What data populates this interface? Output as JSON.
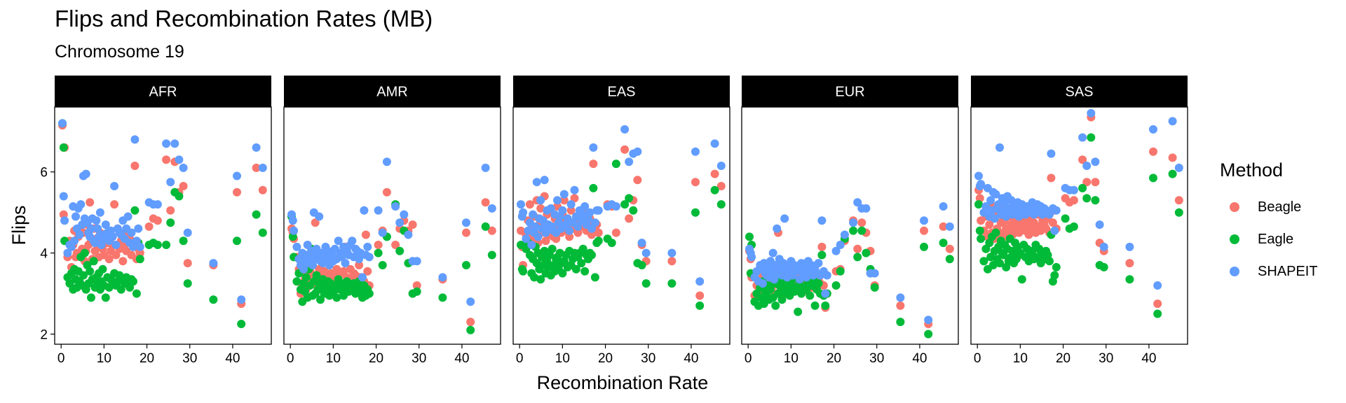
{
  "chart_data": {
    "type": "scatter",
    "title": "Flips and Recombination Rates (MB)",
    "subtitle": "Chromosome 19",
    "xlabel": "Recombination Rate",
    "ylabel": "Flips",
    "xlim": [
      -1.5,
      49
    ],
    "ylim": [
      1.75,
      7.6
    ],
    "x_ticks": [
      0,
      10,
      20,
      30,
      40
    ],
    "y_ticks": [
      2,
      4,
      6
    ],
    "facets": [
      "AFR",
      "AMR",
      "EAS",
      "EUR",
      "SAS"
    ],
    "legend": {
      "title": "Method",
      "position": "right"
    },
    "series": [
      {
        "name": "Beagle",
        "color": "#F8766D"
      },
      {
        "name": "Eagle",
        "color": "#00BA38"
      },
      {
        "name": "SHAPEIT",
        "color": "#619CFF"
      }
    ],
    "x": [
      0.3,
      0.6,
      0.8,
      1.5,
      2.0,
      2.4,
      2.8,
      3.1,
      3.4,
      3.7,
      4.0,
      4.3,
      4.6,
      4.9,
      5.2,
      5.5,
      5.8,
      6.1,
      6.4,
      6.7,
      7.0,
      7.3,
      7.6,
      7.9,
      8.2,
      8.5,
      8.8,
      9.1,
      9.4,
      9.7,
      10.0,
      10.4,
      10.8,
      11.2,
      11.6,
      12.0,
      12.4,
      12.8,
      13.2,
      13.6,
      14.0,
      14.4,
      14.8,
      15.2,
      15.6,
      16.0,
      16.4,
      16.8,
      17.2,
      17.6,
      18.0,
      18.4,
      20.5,
      21.5,
      22.5,
      24.5,
      25.5,
      26.5,
      27.5,
      28.5,
      29.5,
      35.5,
      41.0,
      42.0,
      45.5,
      47.0
    ],
    "panels": {
      "AFR": {
        "Beagle": [
          7.15,
          4.95,
          6.6,
          3.9,
          4.3,
          3.65,
          4.2,
          4.55,
          3.9,
          4.0,
          4.4,
          4.6,
          3.95,
          4.1,
          4.5,
          3.8,
          4.05,
          4.7,
          4.2,
          5.25,
          4.3,
          3.85,
          4.6,
          4.05,
          4.35,
          4.2,
          3.9,
          4.5,
          4.3,
          4.1,
          3.95,
          4.4,
          4.25,
          3.85,
          4.05,
          4.2,
          5.2,
          3.95,
          4.6,
          4.1,
          4.3,
          3.8,
          4.2,
          4.05,
          4.5,
          4.35,
          3.95,
          4.2,
          6.15,
          3.85,
          4.1,
          4.0,
          4.65,
          4.85,
          4.8,
          6.3,
          5.05,
          6.25,
          5.5,
          5.65,
          3.75,
          3.7,
          5.5,
          2.75,
          6.1,
          5.55
        ],
        "Eagle": [
          7.2,
          6.6,
          4.3,
          3.4,
          3.25,
          3.5,
          3.1,
          3.6,
          3.35,
          3.15,
          3.55,
          3.3,
          3.9,
          3.2,
          3.45,
          4.0,
          3.1,
          3.7,
          3.25,
          3.55,
          2.9,
          3.35,
          3.8,
          3.15,
          3.4,
          3.25,
          3.5,
          3.1,
          3.3,
          3.6,
          3.2,
          2.9,
          3.4,
          3.15,
          3.35,
          3.25,
          3.5,
          3.2,
          3.3,
          3.45,
          3.1,
          3.35,
          3.25,
          3.4,
          3.3,
          3.15,
          3.35,
          3.3,
          5.05,
          3.0,
          4.25,
          3.85,
          4.2,
          4.25,
          4.2,
          4.2,
          4.75,
          5.5,
          5.4,
          4.3,
          3.25,
          2.85,
          4.3,
          2.25,
          4.95,
          4.5
        ],
        "SHAPEIT": [
          7.2,
          5.4,
          4.8,
          4.0,
          4.2,
          4.15,
          5.15,
          4.3,
          4.9,
          4.6,
          5.1,
          4.45,
          5.2,
          4.7,
          5.9,
          4.85,
          5.95,
          4.75,
          4.5,
          4.4,
          4.6,
          4.85,
          4.3,
          4.25,
          4.8,
          4.6,
          4.4,
          5.0,
          4.2,
          4.45,
          4.35,
          4.7,
          4.5,
          4.3,
          4.55,
          4.4,
          5.65,
          4.2,
          4.6,
          4.5,
          4.45,
          4.8,
          4.35,
          4.6,
          4.9,
          4.25,
          4.5,
          4.15,
          6.8,
          4.3,
          4.6,
          4.15,
          5.25,
          5.2,
          5.2,
          6.7,
          5.75,
          6.7,
          6.3,
          6.1,
          4.5,
          3.75,
          5.9,
          2.85,
          6.6,
          6.1
        ]
      },
      "AMR": {
        "Beagle": [
          4.6,
          4.5,
          4.35,
          3.9,
          3.6,
          3.0,
          3.2,
          3.5,
          3.35,
          3.1,
          3.7,
          3.3,
          3.55,
          4.1,
          3.25,
          3.45,
          4.75,
          3.4,
          3.15,
          3.6,
          3.3,
          3.45,
          3.25,
          3.55,
          3.4,
          3.35,
          3.2,
          3.7,
          3.5,
          3.25,
          3.45,
          3.3,
          3.6,
          3.4,
          3.5,
          3.15,
          3.55,
          4.15,
          3.4,
          3.25,
          3.6,
          3.35,
          3.5,
          3.45,
          3.3,
          3.7,
          3.4,
          3.15,
          3.3,
          4.45,
          3.55,
          3.2,
          4.2,
          4.55,
          5.5,
          4.2,
          4.6,
          4.8,
          4.55,
          4.7,
          3.2,
          3.35,
          4.5,
          2.3,
          5.25,
          4.55
        ],
        "Eagle": [
          4.9,
          4.4,
          3.9,
          3.3,
          3.5,
          3.1,
          2.8,
          3.25,
          3.05,
          3.4,
          2.9,
          3.6,
          3.2,
          4.1,
          2.95,
          3.3,
          3.0,
          3.45,
          3.1,
          3.25,
          2.85,
          3.15,
          3.35,
          3.0,
          3.2,
          3.1,
          3.3,
          2.95,
          3.25,
          3.15,
          3.05,
          3.2,
          2.9,
          3.35,
          3.1,
          3.25,
          2.95,
          3.15,
          3.3,
          3.05,
          3.2,
          3.1,
          3.25,
          3.0,
          3.15,
          3.3,
          3.05,
          2.9,
          3.2,
          2.95,
          3.1,
          3.0,
          4.0,
          3.7,
          4.4,
          5.2,
          4.05,
          4.55,
          3.75,
          3.0,
          3.05,
          2.9,
          3.7,
          2.1,
          4.65,
          3.95
        ],
        "SHAPEIT": [
          4.95,
          4.8,
          4.55,
          4.15,
          3.85,
          3.7,
          4.0,
          3.6,
          3.8,
          3.95,
          4.2,
          3.75,
          3.9,
          4.05,
          3.7,
          5.0,
          3.85,
          4.1,
          3.95,
          4.9,
          3.8,
          4.0,
          3.75,
          3.9,
          4.15,
          3.85,
          4.05,
          3.7,
          4.0,
          3.95,
          3.8,
          4.1,
          3.85,
          4.3,
          4.0,
          3.9,
          4.15,
          3.75,
          4.05,
          3.95,
          4.2,
          4.3,
          3.9,
          4.1,
          4.05,
          3.85,
          4.0,
          3.4,
          5.05,
          3.95,
          4.15,
          3.9,
          5.05,
          4.5,
          6.25,
          5.15,
          4.75,
          4.95,
          4.45,
          3.8,
          3.8,
          3.4,
          4.75,
          2.8,
          6.1,
          5.1
        ]
      },
      "EAS": {
        "Beagle": [
          4.55,
          4.15,
          3.7,
          4.45,
          4.8,
          5.2,
          4.35,
          4.6,
          4.9,
          4.4,
          5.3,
          4.25,
          4.7,
          5.1,
          4.5,
          4.75,
          5.4,
          4.3,
          4.95,
          4.6,
          4.45,
          5.0,
          4.55,
          4.4,
          4.85,
          4.35,
          5.15,
          4.65,
          4.8,
          4.5,
          4.95,
          5.3,
          4.55,
          4.7,
          4.4,
          5.05,
          4.6,
          5.35,
          4.75,
          4.5,
          4.9,
          4.65,
          4.8,
          5.0,
          4.55,
          4.7,
          4.85,
          4.45,
          6.2,
          4.6,
          4.7,
          4.5,
          5.2,
          5.15,
          4.5,
          6.55,
          4.85,
          5.3,
          5.8,
          4.2,
          3.8,
          3.8,
          5.75,
          2.95,
          5.95,
          5.65
        ],
        "Eagle": [
          4.2,
          3.6,
          3.55,
          4.1,
          4.25,
          3.95,
          3.5,
          3.85,
          3.4,
          4.15,
          3.75,
          4.0,
          3.6,
          3.35,
          3.9,
          3.7,
          4.05,
          3.5,
          3.8,
          3.65,
          3.95,
          3.45,
          4.1,
          3.7,
          3.55,
          3.85,
          3.9,
          3.6,
          4.0,
          3.75,
          3.5,
          3.8,
          3.95,
          3.65,
          4.05,
          3.7,
          3.85,
          4.0,
          3.6,
          3.9,
          4.0,
          3.75,
          4.1,
          3.55,
          3.95,
          3.85,
          4.0,
          3.95,
          5.6,
          3.4,
          4.25,
          4.3,
          4.35,
          4.25,
          6.2,
          5.2,
          5.35,
          5.05,
          3.75,
          3.7,
          3.25,
          3.25,
          5.0,
          2.7,
          5.55,
          5.2
        ],
        "SHAPEIT": [
          5.2,
          4.9,
          5.0,
          4.35,
          4.55,
          4.75,
          4.2,
          4.95,
          4.5,
          4.65,
          5.75,
          4.4,
          4.85,
          5.3,
          4.6,
          4.8,
          5.8,
          4.5,
          5.05,
          4.7,
          4.6,
          5.1,
          4.65,
          4.55,
          4.95,
          4.5,
          5.3,
          4.75,
          4.9,
          4.6,
          5.05,
          5.45,
          4.7,
          4.85,
          4.55,
          5.2,
          4.75,
          5.55,
          4.9,
          4.65,
          5.05,
          4.8,
          4.95,
          5.15,
          4.7,
          4.85,
          5.0,
          4.6,
          6.6,
          4.75,
          5.05,
          5.05,
          5.15,
          5.2,
          5.15,
          7.05,
          6.25,
          6.45,
          6.5,
          4.25,
          4.0,
          4.0,
          6.5,
          3.3,
          6.7,
          6.15
        ]
      },
      "EUR": {
        "Beagle": [
          4.05,
          3.85,
          3.4,
          2.95,
          3.2,
          3.0,
          3.35,
          3.15,
          3.5,
          3.05,
          3.3,
          2.9,
          3.25,
          3.45,
          3.1,
          3.6,
          3.2,
          3.4,
          3.0,
          3.55,
          4.5,
          3.3,
          3.15,
          3.45,
          3.25,
          3.05,
          3.5,
          3.2,
          3.35,
          3.1,
          3.4,
          3.25,
          3.55,
          3.15,
          3.3,
          3.45,
          3.2,
          3.05,
          3.35,
          3.5,
          3.25,
          3.4,
          3.15,
          3.3,
          3.2,
          3.45,
          3.35,
          3.25,
          4.15,
          3.2,
          2.65,
          3.0,
          3.55,
          3.6,
          4.3,
          4.8,
          4.1,
          4.75,
          4.5,
          4.05,
          3.2,
          2.7,
          4.55,
          2.25,
          4.65,
          4.1
        ],
        "Eagle": [
          4.4,
          3.5,
          4.2,
          2.8,
          3.0,
          2.7,
          3.15,
          2.9,
          3.3,
          2.75,
          3.05,
          2.95,
          3.2,
          2.85,
          3.1,
          3.4,
          2.9,
          3.25,
          2.7,
          3.35,
          3.0,
          3.2,
          3.05,
          2.85,
          3.15,
          3.3,
          3.0,
          3.25,
          3.1,
          2.95,
          3.2,
          3.35,
          3.05,
          3.15,
          2.55,
          3.3,
          3.0,
          3.15,
          3.4,
          3.1,
          3.25,
          2.95,
          3.2,
          3.35,
          2.7,
          3.1,
          3.25,
          3.0,
          3.95,
          2.95,
          2.7,
          3.0,
          3.2,
          3.55,
          4.35,
          4.55,
          3.9,
          4.55,
          4.0,
          3.6,
          3.15,
          2.3,
          4.15,
          2.0,
          4.25,
          3.85
        ],
        "SHAPEIT": [
          4.1,
          4.0,
          3.9,
          3.4,
          3.55,
          3.3,
          3.7,
          3.6,
          3.25,
          3.75,
          3.5,
          3.45,
          3.65,
          3.4,
          3.8,
          3.55,
          4.0,
          3.35,
          3.7,
          4.6,
          3.5,
          3.85,
          3.6,
          3.45,
          3.75,
          4.85,
          3.55,
          3.4,
          3.65,
          3.5,
          3.8,
          3.45,
          3.7,
          3.55,
          3.6,
          3.35,
          3.75,
          3.5,
          3.65,
          3.4,
          3.8,
          3.55,
          3.7,
          3.45,
          3.6,
          3.5,
          3.75,
          3.45,
          4.8,
          3.55,
          3.0,
          3.45,
          4.05,
          4.2,
          4.45,
          4.75,
          5.25,
          5.1,
          5.1,
          3.5,
          3.5,
          2.9,
          4.8,
          2.35,
          5.15,
          4.65
        ]
      },
      "SAS": {
        "Beagle": [
          5.55,
          5.35,
          4.8,
          4.55,
          4.9,
          4.4,
          4.7,
          5.2,
          4.5,
          4.85,
          4.35,
          5.05,
          4.6,
          4.95,
          4.45,
          4.75,
          5.15,
          4.5,
          4.8,
          4.6,
          4.4,
          4.9,
          4.55,
          4.7,
          4.45,
          4.85,
          5.0,
          4.6,
          4.75,
          4.5,
          4.9,
          4.65,
          4.8,
          4.55,
          4.7,
          4.45,
          4.85,
          4.6,
          4.75,
          4.5,
          4.95,
          4.65,
          4.55,
          4.8,
          4.7,
          4.6,
          4.85,
          4.5,
          5.85,
          4.75,
          5.05,
          4.6,
          5.35,
          5.25,
          5.3,
          6.3,
          5.75,
          7.35,
          5.75,
          4.25,
          4.05,
          3.75,
          6.5,
          2.75,
          6.35,
          5.3
        ],
        "Eagle": [
          5.2,
          4.55,
          4.35,
          3.8,
          4.1,
          3.6,
          4.25,
          3.9,
          4.4,
          3.7,
          4.05,
          4.5,
          3.85,
          4.15,
          3.75,
          4.3,
          4.0,
          3.95,
          4.2,
          3.65,
          4.1,
          3.8,
          4.35,
          3.9,
          4.05,
          3.75,
          4.25,
          3.85,
          4.15,
          3.95,
          4.0,
          3.35,
          4.2,
          3.9,
          4.1,
          3.8,
          3.95,
          4.05,
          3.85,
          4.2,
          3.9,
          4.1,
          3.75,
          4.0,
          3.85,
          4.05,
          3.95,
          3.8,
          4.45,
          3.3,
          3.45,
          3.65,
          4.85,
          4.6,
          4.65,
          5.6,
          5.35,
          6.85,
          5.3,
          3.7,
          3.65,
          3.35,
          5.85,
          2.5,
          5.95,
          5.0
        ],
        "SHAPEIT": [
          5.9,
          5.65,
          5.7,
          5.0,
          5.15,
          5.6,
          4.9,
          5.3,
          5.05,
          5.5,
          4.85,
          5.45,
          5.1,
          5.2,
          6.6,
          4.95,
          5.35,
          5.05,
          5.25,
          4.9,
          5.4,
          5.1,
          5.0,
          5.3,
          4.95,
          5.2,
          5.15,
          5.05,
          5.25,
          4.9,
          5.1,
          5.2,
          5.05,
          4.95,
          5.15,
          5.0,
          5.1,
          5.25,
          4.95,
          5.05,
          5.2,
          5.0,
          5.15,
          4.95,
          5.1,
          5.05,
          5.0,
          4.95,
          6.45,
          5.1,
          4.55,
          5.05,
          5.6,
          5.55,
          5.55,
          6.85,
          6.15,
          7.45,
          6.25,
          4.7,
          4.15,
          4.15,
          7.05,
          3.2,
          7.25,
          6.1
        ]
      }
    }
  }
}
